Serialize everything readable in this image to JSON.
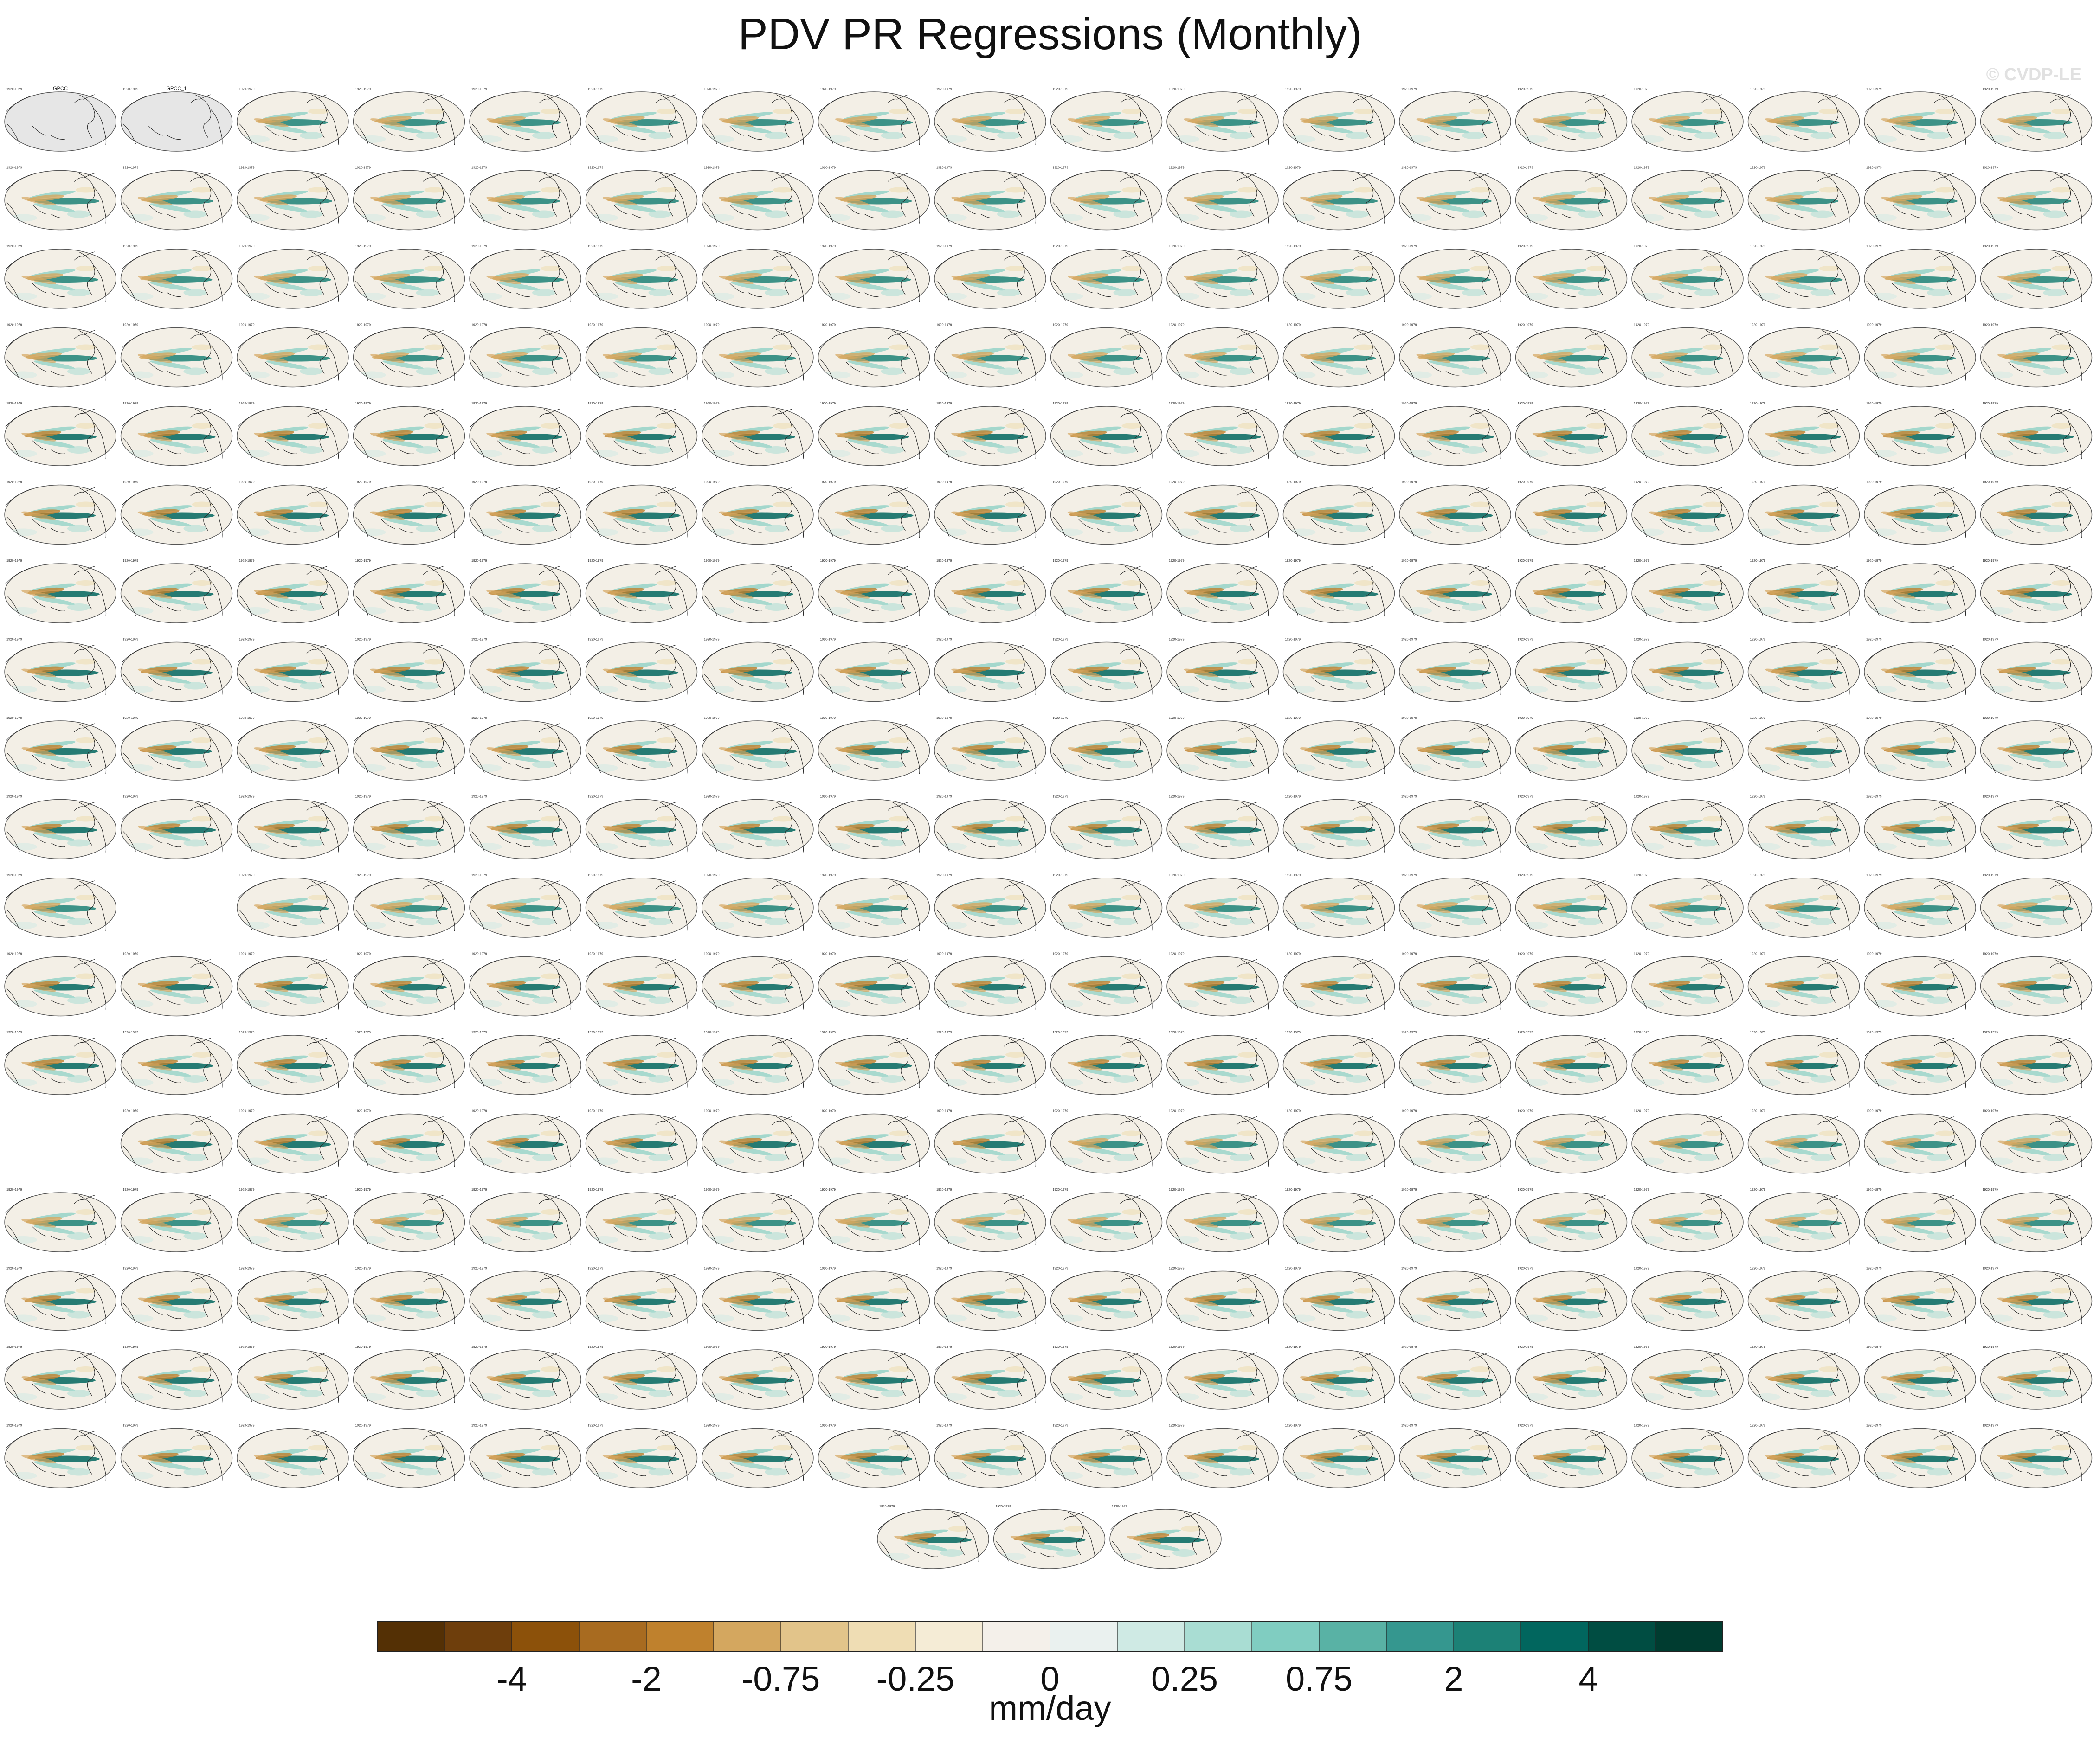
{
  "title": "PDV PR Regressions (Monthly)",
  "watermark": "© CVDP-LE",
  "colors": {
    "background": "#ffffff",
    "land": "#ffffff",
    "obs_land": "#e6e6e6",
    "ocean_base": "#f3efe6",
    "coast": "#2a2a2a",
    "title_cesm": "#2f8bbd",
    "title_gray": "#9a9a9a",
    "title_giss": "#c0504d",
    "title_ipsl": "#6d6dcc",
    "title_mpi": "#d8b37a"
  },
  "chart_data": {
    "type": "heatmap",
    "title": "PDV PR Regressions (Monthly)",
    "colorbar": {
      "label": "mm/day",
      "tick_labels": [
        "-4",
        "-2",
        "-0.75",
        "-0.25",
        "0",
        "0.25",
        "0.75",
        "2",
        "4"
      ],
      "colors": [
        "#543005",
        "#6e3e0c",
        "#8c510a",
        "#a86b20",
        "#bf812d",
        "#d4a75f",
        "#e2c48a",
        "#efddb4",
        "#f5ecd6",
        "#f4f0ea",
        "#eaf1ef",
        "#cfeae4",
        "#a9ddd3",
        "#80cdc1",
        "#59b2a5",
        "#35978f",
        "#1c8176",
        "#01665e",
        "#004d42",
        "#003c30"
      ]
    },
    "panel_rows": [
      {
        "count": 18,
        "group": "obs"
      },
      {
        "count": 18,
        "group": "cesm"
      },
      {
        "count": 18,
        "group": "cesm"
      },
      {
        "count": 18,
        "group": "cesm"
      },
      {
        "count": 18,
        "group": "cesm_le"
      },
      {
        "count": 18,
        "group": "cesm_le"
      },
      {
        "count": 18,
        "group": "cesm_le"
      },
      {
        "count": 18,
        "group": "cesm_le"
      },
      {
        "count": 18,
        "group": "cesm_le"
      },
      {
        "count": 18,
        "group": "cesm_le"
      },
      {
        "count": 17,
        "group": "csiro",
        "skip": [
          1
        ]
      },
      {
        "count": 18,
        "group": "giss"
      },
      {
        "count": 18,
        "group": "giss"
      },
      {
        "count": 17,
        "group": "giss_ipsl",
        "skip": [
          0
        ]
      },
      {
        "count": 18,
        "group": "ipsl"
      },
      {
        "count": 18,
        "group": "mpi"
      },
      {
        "count": 18,
        "group": "mpi"
      },
      {
        "count": 18,
        "group": "mpi"
      },
      {
        "count": 3,
        "group": "mpi"
      }
    ],
    "panel_titles": {
      "obs_1": "GPCC",
      "obs_2": "GPCC_1"
    },
    "panel_period": "1920-1979"
  }
}
